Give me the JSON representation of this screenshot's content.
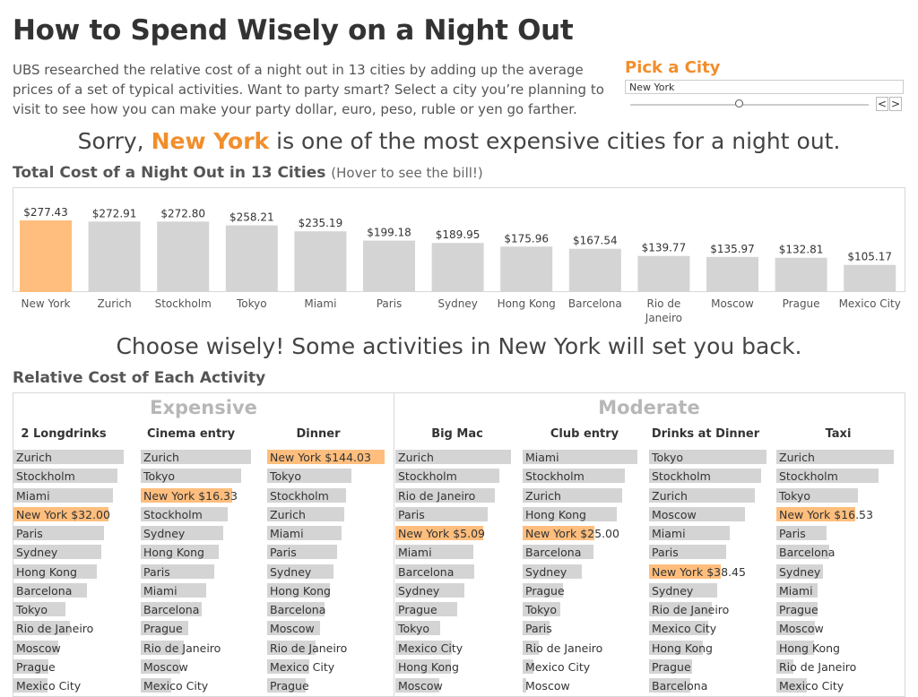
{
  "title": "How to Spend Wisely on a Night Out",
  "description": "UBS researched the relative cost of a night out in 13 cities by adding up the average prices of a set of typical activities. Want to party smart? Select a city you’re planning to visit to see how you can make your party dollar, euro, peso, ruble or yen go farther.",
  "picker": {
    "label": "Pick a City",
    "value": "New York",
    "prev_label": "<",
    "next_label": ">"
  },
  "headline": {
    "prefix": "Sorry, ",
    "city": "New York",
    "suffix": " is one of the most expensive cities for a night out."
  },
  "total_section": {
    "title": "Total Cost of a Night Out in 13 Cities",
    "note": "(Hover to see the bill!)"
  },
  "headline2": "Choose wisely! Some activities in New York will set you back.",
  "activity_section": {
    "title": "Relative Cost of Each Activity"
  },
  "colors": {
    "highlight": "#ffbe7d",
    "bar": "#d4d4d4",
    "accent": "#f28e2b"
  },
  "chart_data": [
    {
      "type": "bar",
      "title": "Total Cost of a Night Out in 13 Cities",
      "categories": [
        "New York",
        "Zurich",
        "Stockholm",
        "Tokyo",
        "Miami",
        "Paris",
        "Sydney",
        "Hong Kong",
        "Barcelona",
        "Rio de Janeiro",
        "Moscow",
        "Prague",
        "Mexico City"
      ],
      "values": [
        277.43,
        272.91,
        272.8,
        258.21,
        235.19,
        199.18,
        189.95,
        175.96,
        167.54,
        139.77,
        135.97,
        132.81,
        105.17
      ],
      "labels": [
        "$277.43",
        "$272.91",
        "$272.80",
        "$258.21",
        "$235.19",
        "$199.18",
        "$189.95",
        "$175.96",
        "$167.54",
        "$139.77",
        "$135.97",
        "$132.81",
        "$105.17"
      ],
      "highlight": "New York",
      "grid": false
    },
    {
      "type": "bar",
      "title": "Relative Cost of Each Activity",
      "groups": [
        {
          "name": "Expensive",
          "columns": [
            "2 Longdrinks",
            "Cinema entry",
            "Dinner"
          ]
        },
        {
          "name": "Moderate",
          "columns": [
            "Big Mac",
            "Club entry",
            "Drinks at Dinner",
            "Taxi"
          ]
        }
      ],
      "highlight_city": "New York",
      "activities": [
        {
          "name": "2 Longdrinks",
          "rows": [
            {
              "city": "Zurich",
              "rel": 0.98
            },
            {
              "city": "Stockholm",
              "rel": 0.92
            },
            {
              "city": "Miami",
              "rel": 0.88
            },
            {
              "city": "New York",
              "rel": 0.84,
              "label": "New York $32.00"
            },
            {
              "city": "Paris",
              "rel": 0.8
            },
            {
              "city": "Sydney",
              "rel": 0.78
            },
            {
              "city": "Hong Kong",
              "rel": 0.74
            },
            {
              "city": "Barcelona",
              "rel": 0.65
            },
            {
              "city": "Tokyo",
              "rel": 0.46
            },
            {
              "city": "Rio de Janeiro",
              "rel": 0.5
            },
            {
              "city": "Moscow",
              "rel": 0.4
            },
            {
              "city": "Prague",
              "rel": 0.31
            },
            {
              "city": "Mexico City",
              "rel": 0.3
            }
          ]
        },
        {
          "name": "Cinema entry",
          "rows": [
            {
              "city": "Zurich",
              "rel": 0.98
            },
            {
              "city": "Tokyo",
              "rel": 0.89
            },
            {
              "city": "New York",
              "rel": 0.81,
              "label": "New York $16.33"
            },
            {
              "city": "Stockholm",
              "rel": 0.77
            },
            {
              "city": "Sydney",
              "rel": 0.73
            },
            {
              "city": "Hong Kong",
              "rel": 0.69
            },
            {
              "city": "Paris",
              "rel": 0.65
            },
            {
              "city": "Miami",
              "rel": 0.58
            },
            {
              "city": "Barcelona",
              "rel": 0.54
            },
            {
              "city": "Prague",
              "rel": 0.42
            },
            {
              "city": "Rio de Janeiro",
              "rel": 0.38
            },
            {
              "city": "Moscow",
              "rel": 0.35
            },
            {
              "city": "Mexico City",
              "rel": 0.27
            }
          ]
        },
        {
          "name": "Dinner",
          "rows": [
            {
              "city": "New York",
              "rel": 0.98,
              "label": "New York $144.03"
            },
            {
              "city": "Tokyo",
              "rel": 0.7
            },
            {
              "city": "Stockholm",
              "rel": 0.66
            },
            {
              "city": "Zurich",
              "rel": 0.64
            },
            {
              "city": "Miami",
              "rel": 0.62
            },
            {
              "city": "Paris",
              "rel": 0.58
            },
            {
              "city": "Sydney",
              "rel": 0.55
            },
            {
              "city": "Hong Kong",
              "rel": 0.52
            },
            {
              "city": "Barcelona",
              "rel": 0.48
            },
            {
              "city": "Moscow",
              "rel": 0.44
            },
            {
              "city": "Rio de Janeiro",
              "rel": 0.4
            },
            {
              "city": "Mexico City",
              "rel": 0.35
            },
            {
              "city": "Prague",
              "rel": 0.32
            }
          ]
        },
        {
          "name": "Big Mac",
          "rows": [
            {
              "city": "Zurich",
              "rel": 0.98
            },
            {
              "city": "Stockholm",
              "rel": 0.88
            },
            {
              "city": "Rio de Janeiro",
              "rel": 0.84
            },
            {
              "city": "Paris",
              "rel": 0.78
            },
            {
              "city": "New York",
              "rel": 0.74,
              "label": "New York $5.09"
            },
            {
              "city": "Miami",
              "rel": 0.66
            },
            {
              "city": "Barcelona",
              "rel": 0.67
            },
            {
              "city": "Sydney",
              "rel": 0.58
            },
            {
              "city": "Prague",
              "rel": 0.52
            },
            {
              "city": "Tokyo",
              "rel": 0.38
            },
            {
              "city": "Mexico City",
              "rel": 0.48
            },
            {
              "city": "Hong Kong",
              "rel": 0.47
            },
            {
              "city": "Moscow",
              "rel": 0.37
            }
          ]
        },
        {
          "name": "Club entry",
          "rows": [
            {
              "city": "Miami",
              "rel": 0.98
            },
            {
              "city": "Stockholm",
              "rel": 0.87
            },
            {
              "city": "Zurich",
              "rel": 0.85
            },
            {
              "city": "Hong Kong",
              "rel": 0.8
            },
            {
              "city": "New York",
              "rel": 0.61,
              "label": "New York $25.00"
            },
            {
              "city": "Barcelona",
              "rel": 0.6
            },
            {
              "city": "Sydney",
              "rel": 0.5
            },
            {
              "city": "Prague",
              "rel": 0.34
            },
            {
              "city": "Tokyo",
              "rel": 0.32
            },
            {
              "city": "Paris",
              "rel": 0.23
            },
            {
              "city": "Rio de Janeiro",
              "rel": 0.14
            },
            {
              "city": "Mexico City",
              "rel": 0.09
            },
            {
              "city": "Moscow",
              "rel": 0.03
            }
          ]
        },
        {
          "name": "Drinks at Dinner",
          "rows": [
            {
              "city": "Tokyo",
              "rel": 0.98
            },
            {
              "city": "Stockholm",
              "rel": 0.93
            },
            {
              "city": "Zurich",
              "rel": 0.88
            },
            {
              "city": "Moscow",
              "rel": 0.8
            },
            {
              "city": "Miami",
              "rel": 0.67
            },
            {
              "city": "Paris",
              "rel": 0.64
            },
            {
              "city": "New York",
              "rel": 0.6,
              "label": "New York $38.45"
            },
            {
              "city": "Sydney",
              "rel": 0.57
            },
            {
              "city": "Rio de Janeiro",
              "rel": 0.52
            },
            {
              "city": "Mexico City",
              "rel": 0.49
            },
            {
              "city": "Hong Kong",
              "rel": 0.45
            },
            {
              "city": "Prague",
              "rel": 0.36
            },
            {
              "city": "Barcelona",
              "rel": 0.34
            }
          ]
        },
        {
          "name": "Taxi",
          "rows": [
            {
              "city": "Zurich",
              "rel": 0.98
            },
            {
              "city": "Stockholm",
              "rel": 0.85
            },
            {
              "city": "Tokyo",
              "rel": 0.68
            },
            {
              "city": "New York",
              "rel": 0.66,
              "label": "New York $16.53"
            },
            {
              "city": "Paris",
              "rel": 0.42
            },
            {
              "city": "Barcelona",
              "rel": 0.44
            },
            {
              "city": "Sydney",
              "rel": 0.39
            },
            {
              "city": "Miami",
              "rel": 0.34
            },
            {
              "city": "Prague",
              "rel": 0.34
            },
            {
              "city": "Moscow",
              "rel": 0.32
            },
            {
              "city": "Hong Kong",
              "rel": 0.31
            },
            {
              "city": "Rio de Janeiro",
              "rel": 0.14
            },
            {
              "city": "Mexico City",
              "rel": 0.25
            }
          ]
        }
      ]
    }
  ]
}
